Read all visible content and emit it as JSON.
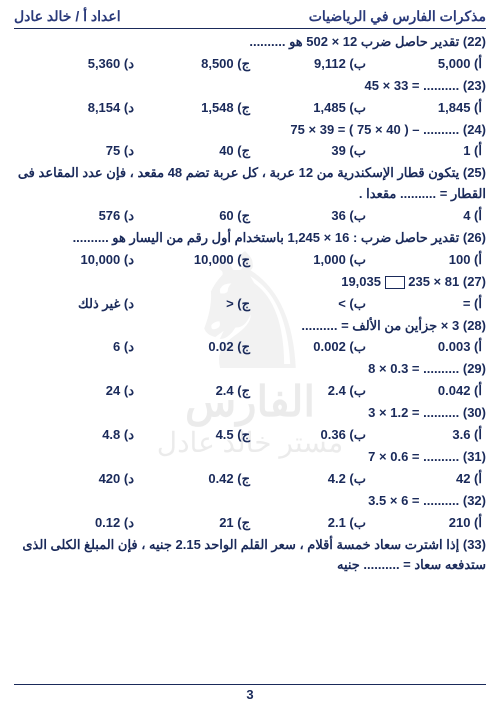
{
  "header": {
    "right": "مذكرات الفارس في الرياضيات",
    "left": "اعداد أ / خالد عادل"
  },
  "watermark": {
    "line1": "الفارس",
    "line2": "مستر خالد عادل"
  },
  "q22": {
    "text": "(22) تقدير حاصل ضرب 12 × 502 هو ..........",
    "a": "أ) 5,000",
    "b": "ب) 9,112",
    "c": "ج) 8,500",
    "d": "د) 5,360"
  },
  "q23": {
    "text": "(23) .......... = 33 × 45",
    "a": "أ) 1,845",
    "b": "ب) 1,485",
    "c": "ج) 1,548",
    "d": "د) 8,154"
  },
  "q24": {
    "text": "(24) .......... – ( 40 × 75 ) = 39 × 75",
    "a": "أ) 1",
    "b": "ب) 39",
    "c": "ج) 40",
    "d": "د) 75"
  },
  "q25": {
    "text": "(25) يتكون قطار الإسكندرية من 12 عربة ، كل عربة تضم 48 مقعد ، فإن عدد المقاعد فى القطار = .......... مقعدا .",
    "a": "أ) 4",
    "b": "ب) 36",
    "c": "ج) 60",
    "d": "د) 576"
  },
  "q26": {
    "text": "(26) تقدير حاصل ضرب : 16 × 1,245 باستخدام أول رقم من اليسار هو ..........",
    "a": "أ) 100",
    "b": "ب) 1,000",
    "c": "ج) 10,000",
    "d": "د) 10,000"
  },
  "q27": {
    "text_before": "(27) 81 × 235 ",
    "text_after": " 19,035",
    "a": "أ) =",
    "b": "ب) >",
    "c": "ج) <",
    "d": "د) غير ذلك"
  },
  "q28": {
    "text": "(28) 3 × جزأين من الألف = ..........",
    "a": "أ) 0.003",
    "b": "ب) 0.002",
    "c": "ج) 0.02",
    "d": "د) 6"
  },
  "q29": {
    "text": "(29) .......... = 0.3 × 8",
    "a": "أ) 0.042",
    "b": "ب) 2.4",
    "c": "ج) 2.4",
    "d": "د) 24"
  },
  "q30": {
    "text": "(30) .......... = 1.2 × 3",
    "a": "أ) 3.6",
    "b": "ب) 0.36",
    "c": "ج) 4.5",
    "d": "د) 4.8"
  },
  "q31": {
    "text": "(31) .......... = 0.6 × 7",
    "a": "أ) 42",
    "b": "ب) 4.2",
    "c": "ج) 0.42",
    "d": "د) 420"
  },
  "q32": {
    "text": "(32) .......... = 6 × 3.5",
    "a": "أ) 210",
    "b": "ب) 2.1",
    "c": "ج) 21",
    "d": "د) 0.12"
  },
  "q33": {
    "text": "(33) إذا اشترت سعاد خمسة أقلام ، سعر القلم الواحد 2.15 جنيه ، فإن المبلغ الكلى الذى ستدفعه سعاد = .......... جنيه"
  },
  "pagenum": "3"
}
